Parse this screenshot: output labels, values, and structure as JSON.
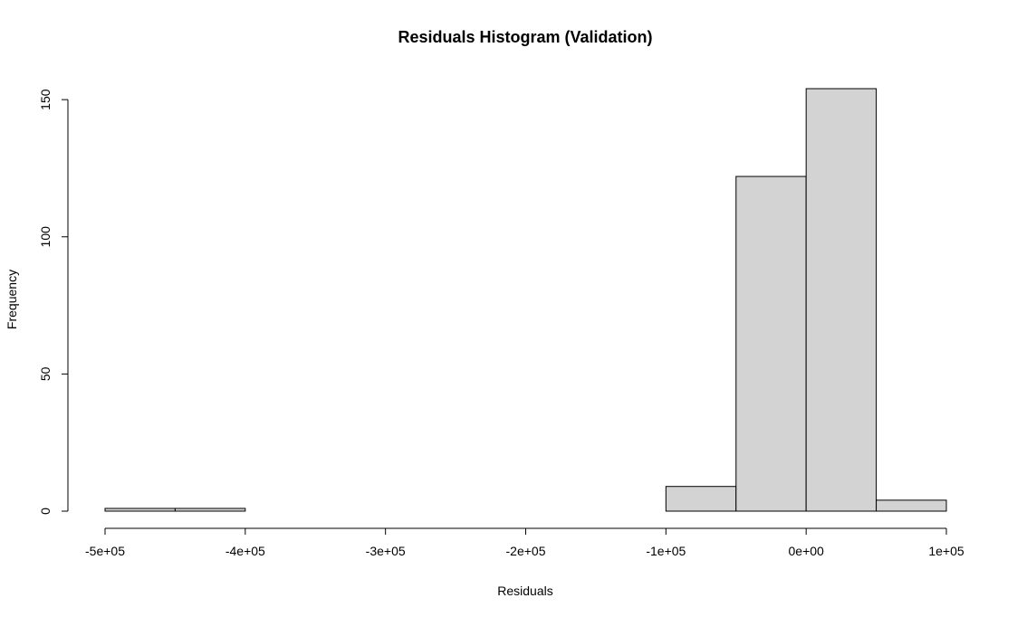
{
  "chart_data": {
    "type": "bar",
    "title": "Residuals Histogram (Validation)",
    "xlabel": "Residuals",
    "ylabel": "Frequency",
    "bin_edges": [
      -500000,
      -450000,
      -400000,
      -350000,
      -300000,
      -250000,
      -200000,
      -150000,
      -100000,
      -50000,
      0,
      50000,
      100000
    ],
    "values": [
      1,
      1,
      0,
      0,
      0,
      0,
      0,
      0,
      9,
      122,
      154,
      4
    ],
    "bar_color": "#d3d3d3",
    "x_ticks": [
      -500000,
      -400000,
      -300000,
      -200000,
      -100000,
      0,
      100000
    ],
    "x_tick_labels": [
      "-5e+05",
      "-4e+05",
      "-3e+05",
      "-2e+05",
      "-1e+05",
      "0e+00",
      "1e+05"
    ],
    "xlim": [
      -500000,
      100000
    ],
    "y_ticks": [
      0,
      50,
      100,
      150
    ],
    "y_tick_labels": [
      "0",
      "50",
      "100",
      "150"
    ],
    "ylim": [
      0,
      154
    ],
    "grid": false
  }
}
